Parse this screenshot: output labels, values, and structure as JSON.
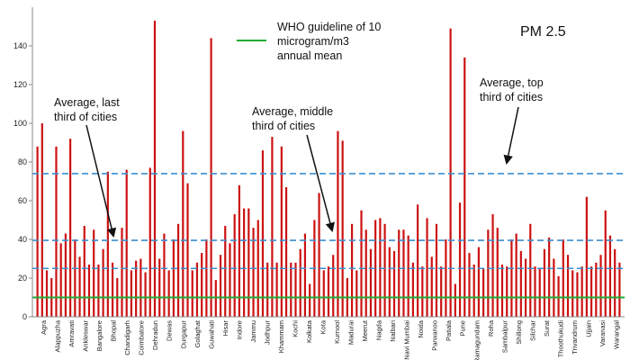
{
  "chart_data": {
    "type": "bar",
    "title": "PM 2.5",
    "ylim": [
      0,
      160
    ],
    "yticks": [
      0,
      20,
      40,
      60,
      80,
      100,
      120,
      140
    ],
    "grid": false,
    "bar_color": "#cc1111",
    "values": [
      88,
      100,
      24,
      20,
      88,
      38,
      43,
      92,
      40,
      31,
      47,
      27,
      45,
      27,
      35,
      75,
      28,
      20,
      46,
      76,
      24,
      29,
      30,
      23,
      77,
      153,
      30,
      43,
      24,
      40,
      48,
      96,
      69,
      24,
      28,
      33,
      40,
      144,
      19,
      32,
      47,
      38,
      53,
      68,
      56,
      56,
      46,
      50,
      86,
      28,
      93,
      28,
      88,
      67,
      28,
      28,
      35,
      43,
      17,
      50,
      64,
      24,
      26,
      32,
      96,
      91,
      20,
      48,
      24,
      55,
      45,
      35,
      50,
      51,
      48,
      36,
      34,
      45,
      45,
      42,
      28,
      58,
      26,
      51,
      31,
      48,
      26,
      40,
      149,
      17,
      59,
      134,
      33,
      27,
      36,
      25,
      45,
      53,
      46,
      27,
      26,
      40,
      43,
      34,
      30,
      48,
      26,
      25,
      35,
      41,
      30,
      21,
      40,
      32,
      24,
      23,
      26,
      62,
      26,
      28,
      32,
      55,
      42,
      35,
      28
    ],
    "category_labels": [
      "Agra",
      "Alappuzha",
      "Amravati",
      "Ankleswar",
      "Bangalore",
      "Bhopal",
      "Chandigarh",
      "Coimbatore",
      "Dehradun",
      "Dewas",
      "Durgapur",
      "Golaghat",
      "Guwahati",
      "Hisar",
      "Indore",
      "Jammu",
      "Jodhpur",
      "Khammam",
      "Kochi",
      "Kolkata",
      "Kota",
      "Kurnool",
      "Madurai",
      "Meerut",
      "Nagda",
      "Nalbari",
      "Navi Mumbai",
      "Noida",
      "Parwanoo",
      "Patiala",
      "Pune",
      "Ramagundam",
      "Roha",
      "Sambalpur",
      "Shillong",
      "Silchar",
      "Surat",
      "Thoothukudi",
      "Trivandrum",
      "Ujjain",
      "Varanasi",
      "Warangal"
    ],
    "reference_lines": [
      {
        "value": 10,
        "color": "#22aa33",
        "style": "solid",
        "label": "WHO guideline of 10 microgram/m3 annual mean"
      },
      {
        "value": 25,
        "color": "#3a8fd0",
        "style": "dashed",
        "label": "Average, last third of cities"
      },
      {
        "value": 39.5,
        "color": "#3a8fd0",
        "style": "dashed",
        "label": "Average, middle third of cities"
      },
      {
        "value": 74,
        "color": "#3a8fd0",
        "style": "dashed",
        "label": "Average, top third of cities"
      }
    ],
    "legend": {
      "line1": "WHO guideline of 10",
      "line2": "microgram/m3",
      "line3": "annual mean"
    },
    "annotations": {
      "last_third": {
        "line1": "Average, last",
        "line2": "third of cities"
      },
      "middle_third": {
        "line1": "Average, middle",
        "line2": "third of cities"
      },
      "top_third": {
        "line1": "Average, top",
        "line2": "third of cities"
      }
    }
  }
}
